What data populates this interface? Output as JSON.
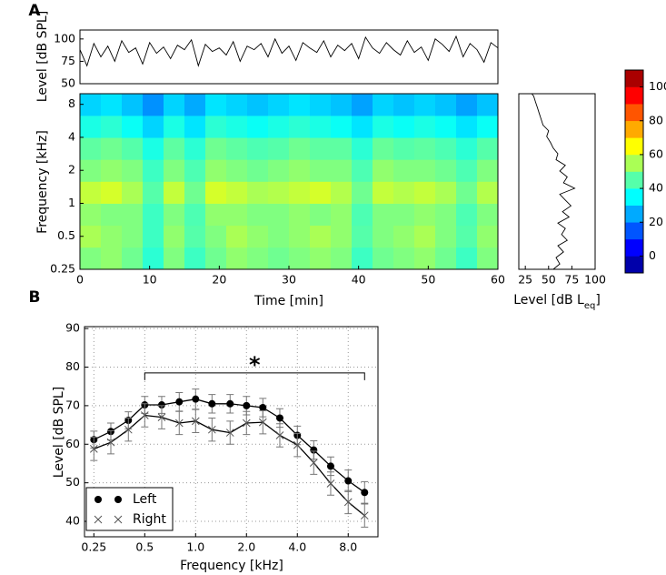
{
  "chart_data": [
    {
      "type": "line",
      "panel": "A",
      "ylabel": "Level [dB SPL]",
      "x": [
        0,
        1,
        2,
        3,
        4,
        5,
        6,
        7,
        8,
        9,
        10,
        11,
        12,
        13,
        14,
        15,
        16,
        17,
        18,
        19,
        20,
        21,
        22,
        23,
        24,
        25,
        26,
        27,
        28,
        29,
        30,
        31,
        32,
        33,
        34,
        35,
        36,
        37,
        38,
        39,
        40,
        41,
        42,
        43,
        44,
        45,
        46,
        47,
        48,
        49,
        50,
        51,
        52,
        53,
        54,
        55,
        56,
        57,
        58,
        59,
        60
      ],
      "values": [
        88,
        70,
        95,
        80,
        92,
        75,
        98,
        85,
        90,
        72,
        96,
        84,
        91,
        78,
        93,
        88,
        99,
        70,
        94,
        86,
        90,
        82,
        97,
        75,
        92,
        88,
        95,
        80,
        100,
        84,
        92,
        76,
        96,
        90,
        85,
        98,
        80,
        93,
        87,
        95,
        78,
        102,
        90,
        84,
        96,
        88,
        82,
        98,
        85,
        91,
        76,
        100,
        94,
        86,
        103,
        80,
        95,
        88,
        74,
        96,
        90
      ],
      "color": "#000000",
      "xlim": [
        0,
        60
      ],
      "ylim": [
        50,
        110
      ],
      "yticks": [
        50,
        75,
        100
      ]
    },
    {
      "type": "heatmap",
      "ylabel": "Frequency [kHz]",
      "xlabel": "Time [min]",
      "xlim": [
        0,
        60
      ],
      "xticks": [
        0,
        10,
        20,
        30,
        40,
        50,
        60
      ],
      "ylim": [
        0.25,
        10
      ],
      "log_y": true,
      "yticks": [
        0.25,
        0.5,
        1,
        2,
        4,
        8
      ],
      "clim": [
        -10,
        110
      ],
      "cticks": [
        0,
        20,
        40,
        60,
        80,
        100
      ],
      "colormap": "jet",
      "z": [
        [
          50,
          52,
          48,
          40,
          50,
          42,
          48,
          52,
          50,
          48,
          50,
          52,
          50,
          42,
          48,
          50,
          52,
          48,
          42,
          50
        ],
        [
          55,
          52,
          50,
          42,
          52,
          45,
          50,
          55,
          52,
          50,
          52,
          55,
          52,
          45,
          50,
          52,
          55,
          50,
          45,
          52
        ],
        [
          52,
          50,
          50,
          42,
          50,
          44,
          52,
          52,
          50,
          50,
          52,
          50,
          52,
          44,
          50,
          50,
          52,
          50,
          44,
          50
        ],
        [
          58,
          60,
          55,
          45,
          58,
          48,
          60,
          58,
          55,
          56,
          58,
          60,
          56,
          48,
          58,
          56,
          58,
          55,
          48,
          56
        ],
        [
          50,
          52,
          50,
          42,
          50,
          44,
          52,
          50,
          48,
          50,
          52,
          50,
          50,
          44,
          52,
          50,
          50,
          48,
          44,
          50
        ],
        [
          46,
          48,
          45,
          38,
          46,
          40,
          48,
          46,
          44,
          45,
          48,
          46,
          46,
          40,
          47,
          45,
          46,
          44,
          40,
          45
        ],
        [
          38,
          40,
          36,
          30,
          38,
          32,
          40,
          38,
          36,
          38,
          40,
          38,
          36,
          32,
          38,
          36,
          38,
          36,
          32,
          36
        ],
        [
          30,
          32,
          28,
          22,
          30,
          25,
          32,
          30,
          28,
          30,
          32,
          30,
          28,
          24,
          30,
          28,
          30,
          28,
          24,
          28
        ]
      ]
    },
    {
      "type": "spectrum",
      "xlabel": [
        "Level [dB L",
        "eq",
        "]"
      ],
      "frequencies": [
        0.25,
        0.28,
        0.32,
        0.36,
        0.41,
        0.46,
        0.52,
        0.59,
        0.66,
        0.75,
        0.84,
        0.95,
        1.07,
        1.21,
        1.37,
        1.54,
        1.74,
        1.97,
        2.22,
        2.5,
        2.83,
        3.19,
        3.6,
        4.07,
        4.59,
        5.18,
        5.85,
        6.6,
        7.45,
        8.4,
        9.5,
        10
      ],
      "levels": [
        55,
        62,
        58,
        66,
        60,
        70,
        64,
        68,
        60,
        72,
        65,
        74,
        68,
        62,
        78,
        66,
        70,
        62,
        68,
        58,
        60,
        55,
        52,
        48,
        50,
        44,
        42,
        40,
        38,
        36,
        34,
        32
      ],
      "color": "#000000",
      "xlim": [
        18,
        100
      ],
      "xticks": [
        25,
        50,
        75,
        100
      ],
      "ylim": [
        0.25,
        10
      ],
      "log_y": true
    },
    {
      "type": "errorbar",
      "panel": "B",
      "ylabel": "Level [dB SPL]",
      "xlabel": "Frequency [kHz]",
      "x": [
        0.25,
        0.315,
        0.4,
        0.5,
        0.63,
        0.8,
        1,
        1.25,
        1.6,
        2,
        2.5,
        3.15,
        4,
        5,
        6.3,
        8,
        10
      ],
      "series": [
        {
          "name": "Left",
          "color": "#000000",
          "marker": "o",
          "values": [
            61.2,
            63.3,
            66.2,
            70.2,
            70.2,
            71.0,
            71.7,
            70.5,
            70.5,
            70.0,
            69.5,
            66.8,
            62.3,
            58.5,
            54.3,
            50.5,
            47.5
          ],
          "errors": [
            2.2,
            2.2,
            2.2,
            2.2,
            2.2,
            2.4,
            2.6,
            2.4,
            2.4,
            2.4,
            2.4,
            2.4,
            2.4,
            2.4,
            2.4,
            2.8,
            2.8
          ]
        },
        {
          "name": "Right",
          "color": "#555555",
          "marker": "x",
          "values": [
            58.8,
            60.5,
            63.8,
            67.5,
            67.0,
            65.5,
            66.0,
            63.8,
            63.0,
            65.5,
            65.7,
            62.3,
            59.8,
            55.2,
            49.8,
            45.0,
            41.5
          ],
          "errors": [
            3.0,
            3.0,
            3.0,
            3.0,
            3.0,
            3.0,
            3.0,
            3.0,
            3.0,
            3.0,
            3.0,
            3.0,
            3.0,
            3.0,
            3.0,
            3.0,
            3.0
          ]
        }
      ],
      "xlim": [
        0.22,
        12
      ],
      "log_x": true,
      "xticks": [
        0.25,
        0.5,
        {
          "value": 1,
          "label": "1.0"
        },
        {
          "value": 2,
          "label": "2.0"
        },
        {
          "value": 4,
          "label": "4.0"
        },
        {
          "value": 8,
          "label": "8.0"
        }
      ],
      "ylim": [
        36,
        90.5
      ],
      "yticks": [
        40,
        50,
        60,
        70,
        80,
        90
      ],
      "grid": true,
      "legend": "lower left",
      "significance": {
        "from": 0.5,
        "to": 10,
        "y": 78.5,
        "label": "*"
      }
    }
  ]
}
